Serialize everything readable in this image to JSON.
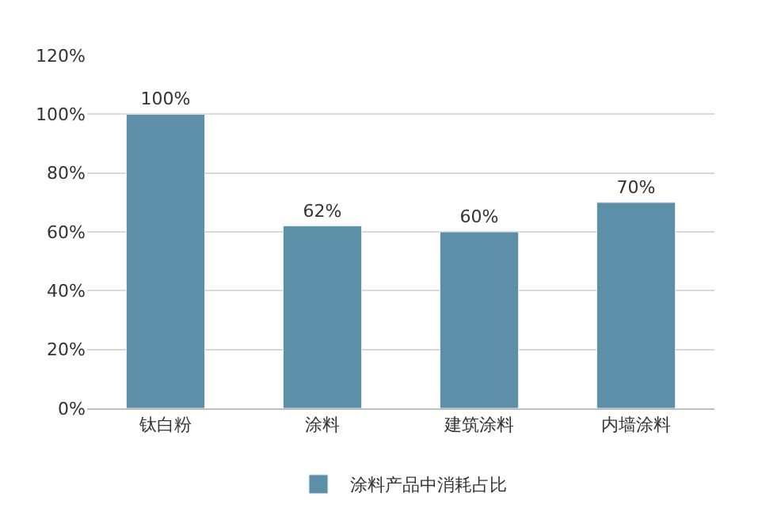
{
  "chart_data": {
    "type": "bar",
    "categories": [
      "钛白粉",
      "涂料",
      "建筑涂料",
      "内墙涂料"
    ],
    "series": [
      {
        "name": "涂料产品中消耗占比",
        "color": "#5e8fa8",
        "values": [
          100,
          62,
          60,
          70
        ],
        "value_labels": [
          "100%",
          "62%",
          "60%",
          "70%"
        ]
      }
    ],
    "ylim": [
      0,
      120
    ],
    "yticks": [
      {
        "value": 0,
        "label": "0%"
      },
      {
        "value": 20,
        "label": "20%"
      },
      {
        "value": 40,
        "label": "40%"
      },
      {
        "value": 60,
        "label": "60%"
      },
      {
        "value": 80,
        "label": "80%"
      },
      {
        "value": 100,
        "label": "100%"
      },
      {
        "value": 120,
        "label": "120%"
      }
    ],
    "grid": "y",
    "legend": "bottom"
  }
}
